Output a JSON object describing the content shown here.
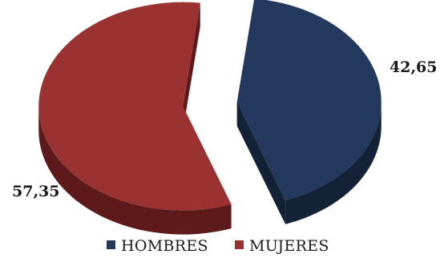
{
  "chart_data": {
    "type": "pie",
    "style": "3d-exploded",
    "categories": [
      "HOMBRES",
      "MUJERES"
    ],
    "values": [
      42.65,
      57.35
    ],
    "data_labels": [
      "42,65",
      "57,35"
    ],
    "colors": [
      "#233a5e",
      "#9a3232"
    ],
    "side_colors": [
      "#142238",
      "#5e1a1a"
    ],
    "legend": {
      "placement": "bottom",
      "entries": [
        "HOMBRES",
        "MUJERES"
      ]
    }
  }
}
